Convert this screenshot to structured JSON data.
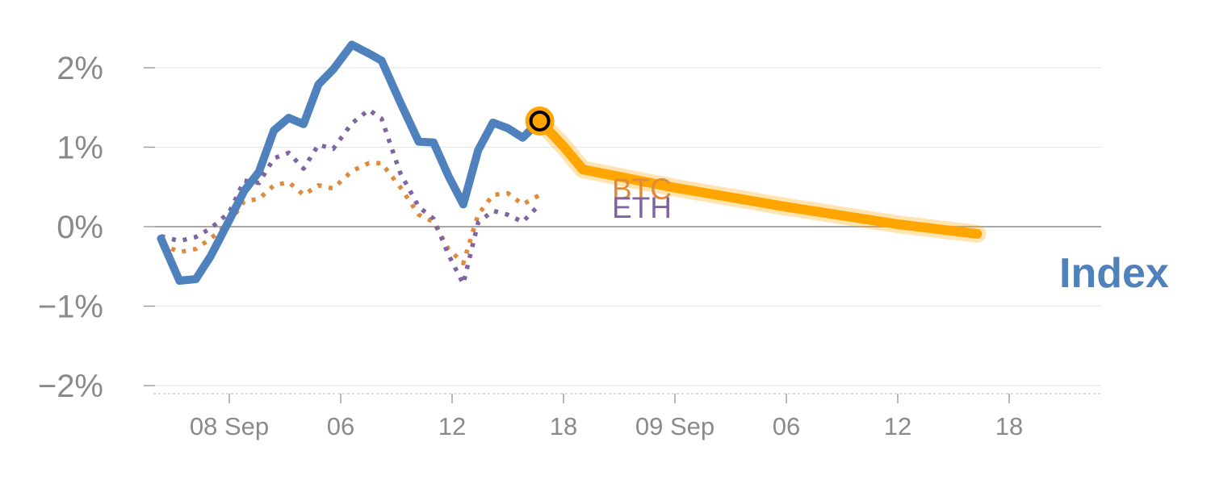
{
  "chart_data": {
    "type": "line",
    "title": "",
    "xlabel": "",
    "ylabel": "",
    "ylim": [
      -2,
      2.4
    ],
    "y_ticks": [
      {
        "value": 2,
        "label": "2%"
      },
      {
        "value": 1,
        "label": "1%"
      },
      {
        "value": 0,
        "label": "0%"
      },
      {
        "value": -1,
        "label": "−1%"
      },
      {
        "value": -2,
        "label": "−2%"
      }
    ],
    "x_ticks": [
      {
        "day": 1,
        "label": "08 Sep"
      },
      {
        "day": 1.25,
        "label": "06"
      },
      {
        "day": 1.5,
        "label": "12"
      },
      {
        "day": 1.75,
        "label": "18"
      },
      {
        "day": 2,
        "label": "09 Sep"
      },
      {
        "day": 2.25,
        "label": "06"
      },
      {
        "day": 2.5,
        "label": "12"
      },
      {
        "day": 2.75,
        "label": "18"
      }
    ],
    "grid": true,
    "series": [
      {
        "name": "Index",
        "style": "solid",
        "color": "#4f81bd",
        "points": [
          [
            0.8467,
            -0.15
          ],
          [
            0.8883,
            -0.68
          ],
          [
            0.925,
            -0.66
          ],
          [
            0.9583,
            -0.37
          ],
          [
            1.0,
            0.08
          ],
          [
            1.0333,
            0.45
          ],
          [
            1.0667,
            0.69
          ],
          [
            1.1,
            1.21
          ],
          [
            1.1333,
            1.37
          ],
          [
            1.1667,
            1.29
          ],
          [
            1.2,
            1.79
          ],
          [
            1.2333,
            1.98
          ],
          [
            1.275,
            2.29
          ],
          [
            1.3133,
            2.18
          ],
          [
            1.3417,
            2.09
          ],
          [
            1.3833,
            1.57
          ],
          [
            1.425,
            1.07
          ],
          [
            1.4583,
            1.06
          ],
          [
            1.4917,
            0.64
          ],
          [
            1.525,
            0.28
          ],
          [
            1.5583,
            0.96
          ],
          [
            1.5917,
            1.31
          ],
          [
            1.625,
            1.24
          ],
          [
            1.6583,
            1.12
          ],
          [
            1.6967,
            1.33
          ]
        ]
      },
      {
        "name": "BTC",
        "style": "dotted",
        "color": "#e08a3c",
        "points": [
          [
            0.8467,
            -0.22
          ],
          [
            0.8883,
            -0.32
          ],
          [
            0.925,
            -0.28
          ],
          [
            0.9583,
            -0.15
          ],
          [
            1.0,
            0.05
          ],
          [
            1.0333,
            0.32
          ],
          [
            1.0667,
            0.35
          ],
          [
            1.1,
            0.52
          ],
          [
            1.1333,
            0.56
          ],
          [
            1.1667,
            0.4
          ],
          [
            1.2,
            0.52
          ],
          [
            1.2333,
            0.48
          ],
          [
            1.275,
            0.7
          ],
          [
            1.3133,
            0.8
          ],
          [
            1.3417,
            0.8
          ],
          [
            1.3833,
            0.5
          ],
          [
            1.425,
            0.15
          ],
          [
            1.4583,
            0.06
          ],
          [
            1.4917,
            -0.28
          ],
          [
            1.525,
            -0.46
          ],
          [
            1.5583,
            0.15
          ],
          [
            1.5917,
            0.4
          ],
          [
            1.625,
            0.42
          ],
          [
            1.6583,
            0.28
          ],
          [
            1.6967,
            0.4
          ]
        ]
      },
      {
        "name": "ETH",
        "style": "dotted",
        "color": "#8064a2",
        "points": [
          [
            0.8467,
            -0.12
          ],
          [
            0.8883,
            -0.18
          ],
          [
            0.925,
            -0.13
          ],
          [
            0.9583,
            -0.02
          ],
          [
            1.0,
            0.18
          ],
          [
            1.0333,
            0.58
          ],
          [
            1.0667,
            0.55
          ],
          [
            1.1,
            0.86
          ],
          [
            1.1333,
            0.93
          ],
          [
            1.1667,
            0.73
          ],
          [
            1.2,
            1.03
          ],
          [
            1.2333,
            0.98
          ],
          [
            1.275,
            1.3
          ],
          [
            1.3133,
            1.47
          ],
          [
            1.3417,
            1.36
          ],
          [
            1.3833,
            0.68
          ],
          [
            1.425,
            0.25
          ],
          [
            1.4583,
            0.1
          ],
          [
            1.4917,
            -0.35
          ],
          [
            1.525,
            -0.72
          ],
          [
            1.5583,
            0.05
          ],
          [
            1.5917,
            0.2
          ],
          [
            1.625,
            0.15
          ],
          [
            1.6583,
            0.06
          ],
          [
            1.6967,
            0.28
          ]
        ]
      },
      {
        "name": "forecast",
        "style": "band",
        "color": "#ffa500",
        "points": [
          [
            1.6967,
            1.33
          ],
          [
            1.75,
            1.01
          ],
          [
            1.7933,
            0.72
          ],
          [
            2.0,
            0.49
          ],
          [
            2.25,
            0.25
          ],
          [
            2.5,
            0.03
          ],
          [
            2.6783,
            -0.09
          ]
        ]
      }
    ],
    "highlight_point": {
      "day": 1.6967,
      "value": 1.33,
      "fill": "#ffa500",
      "stroke": "#000000"
    },
    "labels": {
      "btc": "BTC",
      "eth": "ETH",
      "index": "Index"
    },
    "colors": {
      "index": "#4f81bd",
      "btc": "#e08a3c",
      "eth": "#8064a2",
      "forecast": "#ffa500",
      "axis_text": "#8a8a8a",
      "grid": "#e6e6e6",
      "zero_line": "#8c8c8c"
    }
  }
}
